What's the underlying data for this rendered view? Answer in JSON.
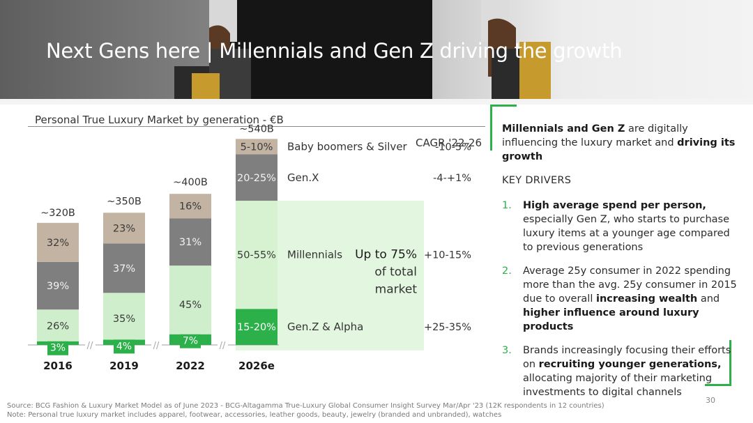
{
  "header": {
    "title": "Next Gens here | Millennials and Gen Z driving the growth"
  },
  "chart_data": {
    "type": "bar",
    "stacked": true,
    "title": "Personal True Luxury Market by generation - €B",
    "categories": [
      "2016",
      "2019",
      "2022",
      "2026e"
    ],
    "totals": [
      "~320B",
      "~350B",
      "~400B",
      "~540B"
    ],
    "total_values": [
      320,
      350,
      400,
      540
    ],
    "series": [
      {
        "name": "Gen.Z & Alpha",
        "color": "#2bb04a",
        "values_pct": [
          3,
          4,
          7,
          17.5
        ],
        "labels": [
          "3%",
          "4%",
          "7%",
          "15-20%"
        ]
      },
      {
        "name": "Millennials",
        "color": "#cfeecb",
        "values_pct": [
          26,
          35,
          45,
          52.5
        ],
        "labels": [
          "26%",
          "35%",
          "45%",
          "50-55%"
        ]
      },
      {
        "name": "Gen.X",
        "color": "#7f7f7f",
        "values_pct": [
          39,
          37,
          31,
          22.5
        ],
        "labels": [
          "39%",
          "37%",
          "31%",
          "20-25%"
        ]
      },
      {
        "name": "Baby boomers & Silver",
        "color": "#c3b3a2",
        "values_pct": [
          32,
          23,
          16,
          7.5
        ],
        "labels": [
          "32%",
          "23%",
          "16%",
          "5-10%"
        ]
      }
    ],
    "cagr_header": "CAGR '22-26",
    "cagr": [
      {
        "segment": "Baby boomers & Silver",
        "value": "-10-5%"
      },
      {
        "segment": "Gen.X",
        "value": "-4-+1%"
      },
      {
        "segment": "Millennials",
        "value": "+10-15%"
      },
      {
        "segment": "Gen.Z & Alpha",
        "value": "+25-35%"
      }
    ],
    "callout": {
      "strong": "Up to 75%",
      "line2": "of total",
      "line3": "market"
    },
    "axis_break_symbol": "//"
  },
  "panel": {
    "headline_part1": "Millennials and Gen Z",
    "headline_part2": " are digitally influencing the luxury market and ",
    "headline_part3": "driving its growth",
    "key_drivers_label": "KEY DRIVERS",
    "drivers": [
      {
        "num": "1.",
        "b1": "High average spend per person,",
        "t1": " especially Gen Z, who starts to purchase luxury items at a younger age compared to previous generations"
      },
      {
        "num": "2.",
        "t1": "Average 25y consumer in 2022 spending more than the avg. 25y consumer in 2015 due to overall ",
        "b1": "increasing wealth",
        "t2": " and ",
        "b2": "higher influence around luxury products"
      },
      {
        "num": "3.",
        "t1": "Brands increasingly focusing their efforts on ",
        "b1": "recruiting younger generations,",
        "t2": " allocating majority of their marketing investments to digital channels"
      }
    ]
  },
  "footer": {
    "page": "30",
    "source": "Source: BCG Fashion & Luxury Market Model as of June 2023 - BCG-Altagamma True-Luxury Global Consumer Insight Survey Mar/Apr '23 (12K respondents in 12 countries)",
    "note": "Note: Personal true luxury market includes apparel, footwear, accessories, leather goods, beauty, jewelry (branded and unbranded), watches"
  }
}
